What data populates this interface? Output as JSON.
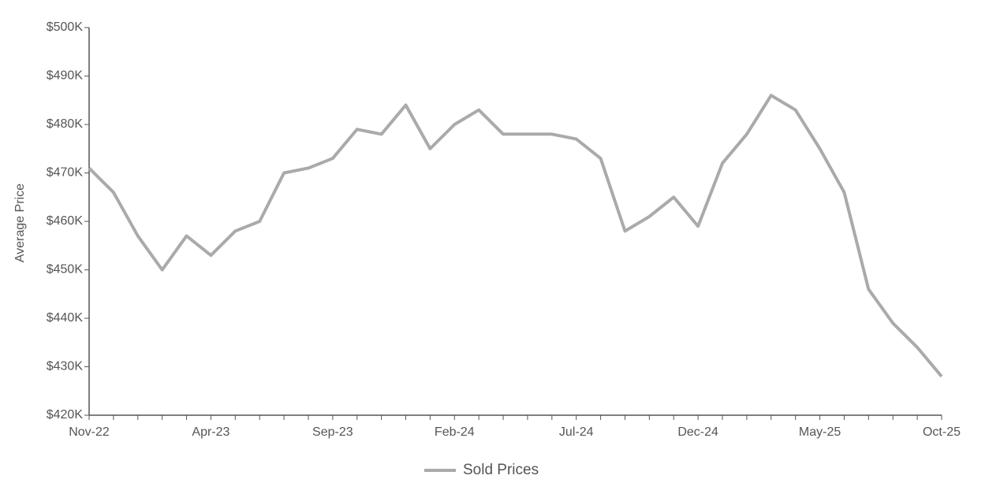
{
  "chart_data": {
    "type": "line",
    "y_label": "Average Price",
    "categories": [
      "Nov-22",
      null,
      null,
      null,
      null,
      "Apr-23",
      null,
      null,
      null,
      null,
      "Sep-23",
      null,
      null,
      null,
      null,
      "Feb-24",
      null,
      null,
      null,
      null,
      "Jul-24",
      null,
      null,
      null,
      null,
      "Dec-24",
      null,
      null,
      null,
      null,
      "May-25",
      null,
      null,
      null,
      null,
      "Oct-25"
    ],
    "series": [
      {
        "name": "Sold Prices",
        "color": "#aaaaaa",
        "values": [
          471000,
          466000,
          457000,
          450000,
          457000,
          453000,
          458000,
          460000,
          470000,
          471000,
          473000,
          479000,
          478000,
          484000,
          475000,
          480000,
          483000,
          478000,
          478000,
          478000,
          477000,
          473000,
          458000,
          461000,
          465000,
          459000,
          472000,
          478000,
          486000,
          483000,
          475000,
          466000,
          446000,
          439000,
          434000,
          428000
        ]
      }
    ],
    "ylim": [
      420000,
      500000
    ],
    "yticks": [
      {
        "value": 420000,
        "label": "$420K"
      },
      {
        "value": 430000,
        "label": "$430K"
      },
      {
        "value": 440000,
        "label": "$440K"
      },
      {
        "value": 450000,
        "label": "$450K"
      },
      {
        "value": 460000,
        "label": "$460K"
      },
      {
        "value": 470000,
        "label": "$470K"
      },
      {
        "value": 480000,
        "label": "$480K"
      },
      {
        "value": 490000,
        "label": "$490K"
      },
      {
        "value": 500000,
        "label": "$500K"
      }
    ],
    "grid": false,
    "legend": "bottom"
  }
}
